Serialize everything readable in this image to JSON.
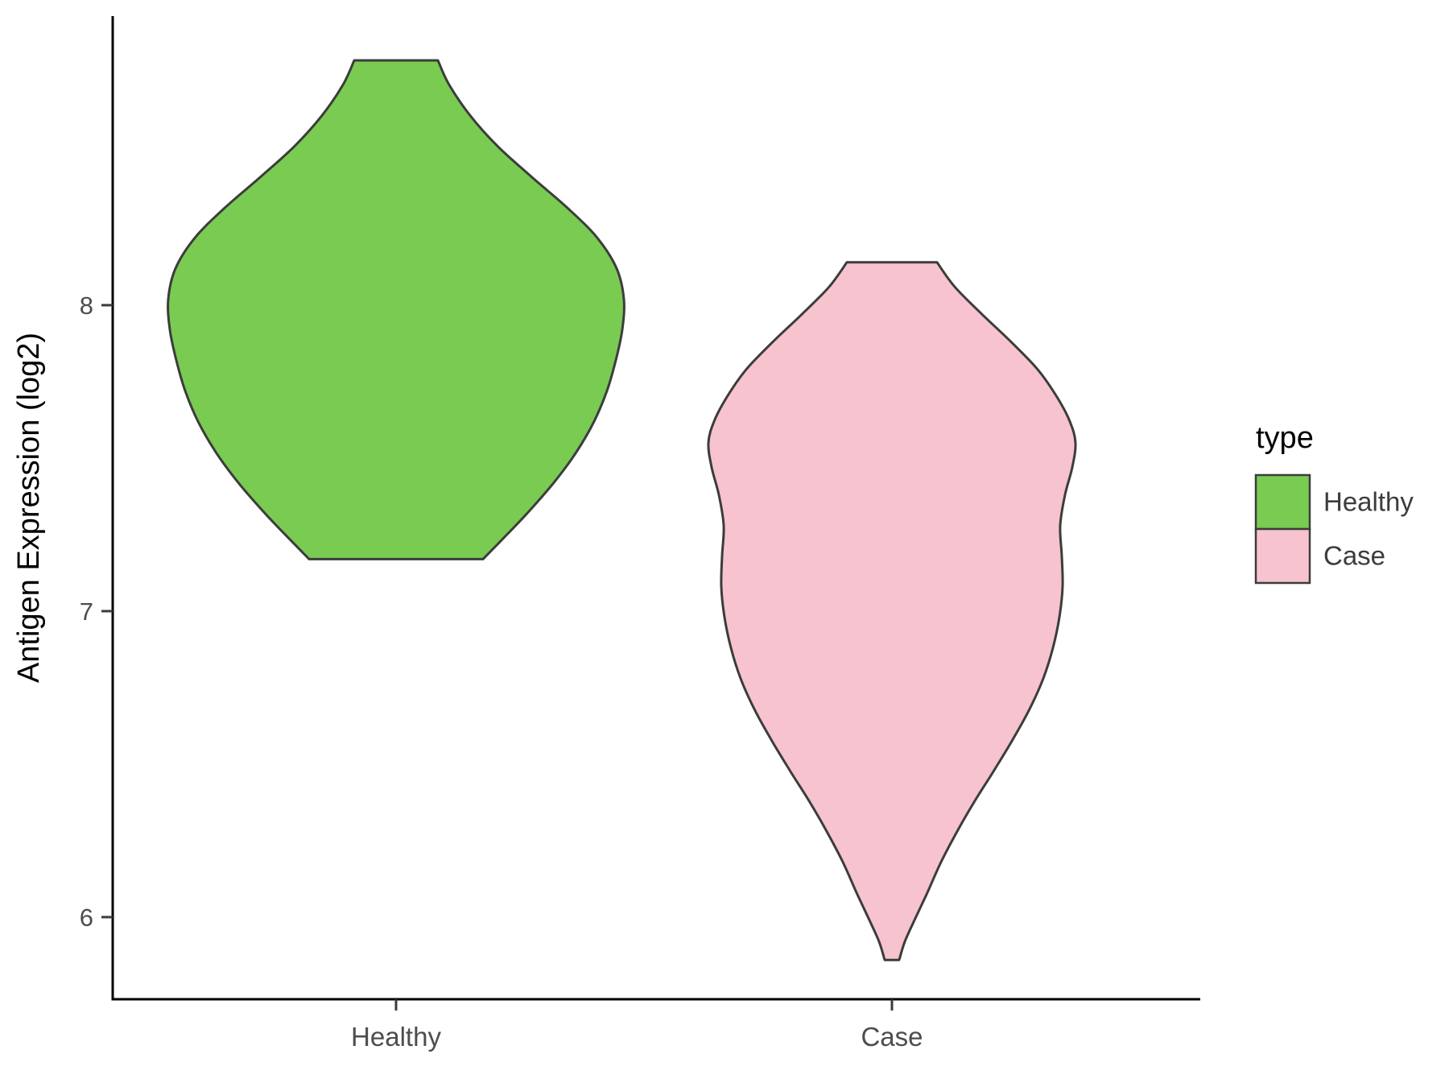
{
  "chart_data": {
    "type": "violin",
    "title": "",
    "xlabel": "",
    "ylabel": "Antigen Expression (log2)",
    "categories": [
      "Healthy",
      "Case"
    ],
    "y_ticks": [
      "6",
      "7",
      "8"
    ],
    "y_tick_values": [
      6,
      7,
      8
    ],
    "ylim": [
      5.7,
      8.95
    ],
    "grid": false,
    "legend": {
      "title": "type",
      "position": "right",
      "entries": [
        {
          "label": "Healthy",
          "fill": "#79CC51"
        },
        {
          "label": "Case",
          "fill": "#F6C3CE"
        }
      ]
    },
    "colors": {
      "outline": "#3C3C3C",
      "axis": "#000000",
      "tick_label": "#4D4D4D",
      "axis_title": "#000000",
      "legend_title": "#000000",
      "legend_label": "#3C3C3C"
    },
    "series": [
      {
        "name": "Healthy",
        "fill": "#79CC51",
        "min": 7.17,
        "max": 8.8,
        "profile": [
          [
            8.8,
            52
          ],
          [
            8.72,
            66
          ],
          [
            8.62,
            92
          ],
          [
            8.52,
            126
          ],
          [
            8.42,
            168
          ],
          [
            8.32,
            212
          ],
          [
            8.22,
            250
          ],
          [
            8.12,
            274
          ],
          [
            8.02,
            283
          ],
          [
            7.92,
            281
          ],
          [
            7.82,
            273
          ],
          [
            7.72,
            262
          ],
          [
            7.62,
            246
          ],
          [
            7.52,
            224
          ],
          [
            7.42,
            196
          ],
          [
            7.32,
            163
          ],
          [
            7.24,
            134
          ],
          [
            7.17,
            108
          ]
        ]
      },
      {
        "name": "Case",
        "fill": "#F6C3CE",
        "min": 5.86,
        "max": 8.14,
        "profile": [
          [
            8.14,
            56
          ],
          [
            8.06,
            78
          ],
          [
            7.97,
            112
          ],
          [
            7.88,
            148
          ],
          [
            7.79,
            181
          ],
          [
            7.7,
            205
          ],
          [
            7.62,
            221
          ],
          [
            7.55,
            228
          ],
          [
            7.47,
            224
          ],
          [
            7.38,
            215
          ],
          [
            7.28,
            209
          ],
          [
            7.18,
            211
          ],
          [
            7.08,
            212
          ],
          [
            6.98,
            208
          ],
          [
            6.88,
            200
          ],
          [
            6.78,
            188
          ],
          [
            6.68,
            171
          ],
          [
            6.58,
            150
          ],
          [
            6.48,
            127
          ],
          [
            6.38,
            103
          ],
          [
            6.28,
            81
          ],
          [
            6.18,
            61
          ],
          [
            6.08,
            44
          ],
          [
            5.99,
            28
          ],
          [
            5.92,
            16
          ],
          [
            5.86,
            9
          ]
        ]
      }
    ]
  }
}
